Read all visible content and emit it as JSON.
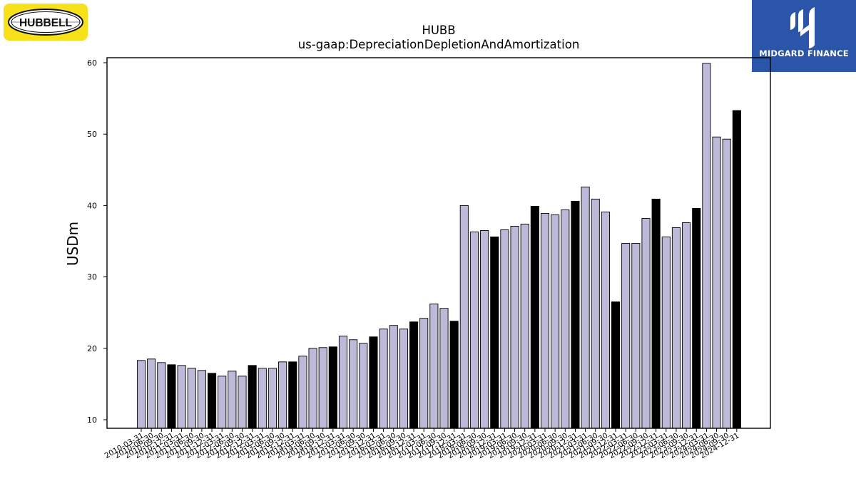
{
  "logos": {
    "left": {
      "text": "HUBBELL",
      "bg_color": "#f7e11b"
    },
    "right": {
      "text": "MIDGARD FINANCE",
      "bg_color": "#2a55a8"
    }
  },
  "colors": {
    "bar_normal": "#bcb9d9",
    "bar_annual": "#000000",
    "edge": "#000000"
  },
  "chart_data": {
    "type": "bar",
    "title": "HUBB",
    "subtitle": "us-gaap:DepreciationDepletionAndAmortization",
    "xlabel": "",
    "ylabel": "USDm",
    "ylim": [
      8.8,
      60.7
    ],
    "yticks": [
      10,
      20,
      30,
      40,
      50,
      60
    ],
    "grid": false,
    "categories": [
      "2010-03-31",
      "2010-06-30",
      "2010-09-30",
      "2010-12-31",
      "2011-03-31",
      "2011-06-30",
      "2011-09-30",
      "2011-12-31",
      "2012-03-31",
      "2012-06-30",
      "2012-09-30",
      "2012-12-31",
      "2013-03-31",
      "2013-06-30",
      "2013-09-30",
      "2013-12-31",
      "2014-03-31",
      "2014-06-30",
      "2014-09-30",
      "2014-12-31",
      "2015-03-31",
      "2015-06-30",
      "2015-09-30",
      "2015-12-31",
      "2016-03-31",
      "2016-06-30",
      "2016-09-30",
      "2016-12-31",
      "2017-03-31",
      "2017-06-30",
      "2017-09-30",
      "2017-12-31",
      "2018-03-31",
      "2018-06-30",
      "2018-09-30",
      "2018-12-31",
      "2019-03-31",
      "2019-06-30",
      "2019-09-30",
      "2019-12-31",
      "2020-03-31",
      "2020-06-30",
      "2020-09-30",
      "2020-12-31",
      "2021-03-31",
      "2021-06-30",
      "2021-09-30",
      "2021-12-31",
      "2022-03-31",
      "2022-06-30",
      "2022-09-30",
      "2022-12-31",
      "2023-03-31",
      "2023-06-30",
      "2023-09-30",
      "2023-12-31",
      "2024-03-31",
      "2024-06-30",
      "2024-09-30",
      "2024-12-31"
    ],
    "values": [
      18.3,
      18.5,
      18.0,
      17.7,
      17.6,
      17.2,
      16.9,
      16.5,
      16.1,
      16.8,
      16.1,
      17.6,
      17.2,
      17.2,
      18.1,
      18.1,
      18.9,
      20.0,
      20.1,
      20.2,
      21.7,
      21.2,
      20.7,
      21.6,
      22.7,
      23.2,
      22.7,
      23.7,
      24.2,
      26.2,
      25.6,
      23.8,
      40.0,
      36.3,
      36.5,
      35.6,
      36.6,
      37.1,
      37.4,
      39.9,
      38.9,
      38.7,
      39.4,
      40.6,
      42.6,
      40.9,
      39.1,
      26.5,
      34.7,
      34.7,
      38.2,
      40.9,
      35.6,
      36.9,
      37.6,
      39.6,
      59.9,
      49.6,
      49.3,
      53.3
    ],
    "highlight_rule": "December (annual) periods drawn in black"
  }
}
